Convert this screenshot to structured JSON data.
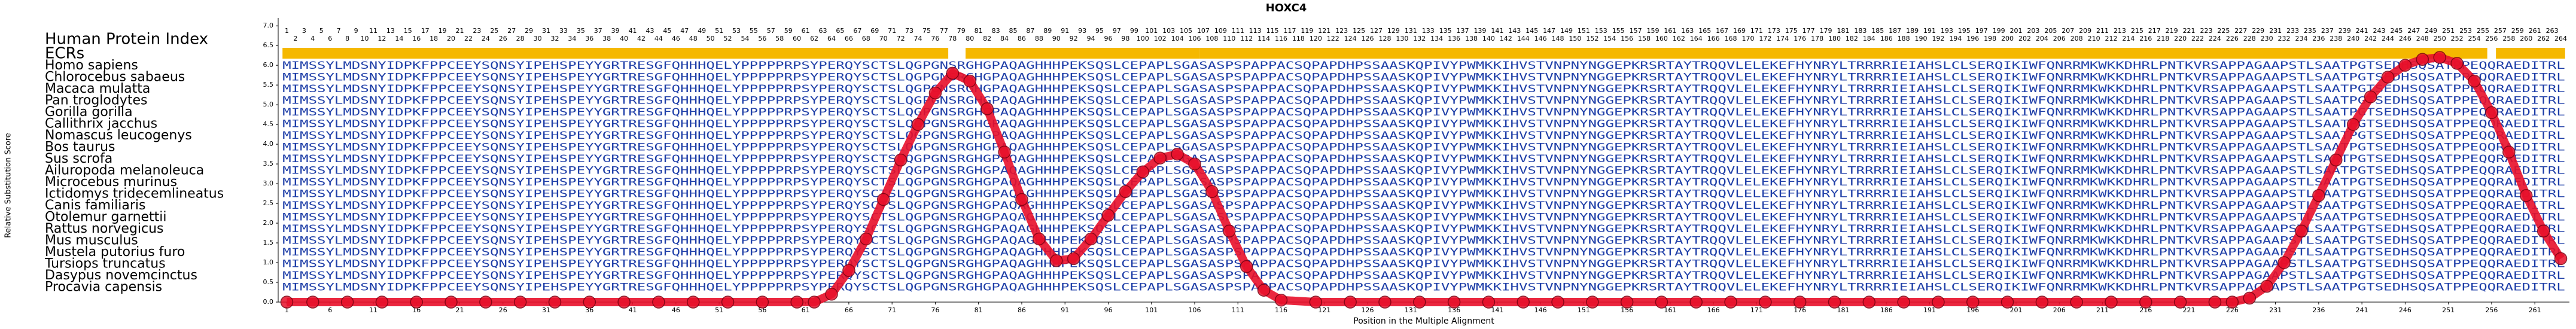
{
  "chart_data": {
    "type": "line",
    "title": "HOXC4",
    "index_label": "Human Protein Index",
    "ecr_label": "ECRs",
    "xlabel": "Position in the Multiple Alignment",
    "ylabel": "Relative Substitution Score",
    "xlim": [
      0,
      265
    ],
    "ylim": [
      0,
      7.2
    ],
    "yticks": [
      {
        "value": 0,
        "label": "0.0"
      },
      {
        "value": 0.5,
        "label": "0.5"
      },
      {
        "value": 1,
        "label": "1.0"
      },
      {
        "value": 1.5,
        "label": "1.5"
      },
      {
        "value": 2,
        "label": "2.0"
      },
      {
        "value": 2.5,
        "label": "2.5"
      },
      {
        "value": 3,
        "label": "3.0"
      },
      {
        "value": 3.5,
        "label": "3.5"
      },
      {
        "value": 4,
        "label": "4.0"
      },
      {
        "value": 4.5,
        "label": "4.5"
      },
      {
        "value": 5,
        "label": "5.0"
      },
      {
        "value": 5.5,
        "label": "5.5"
      },
      {
        "value": 6,
        "label": "6.0"
      },
      {
        "value": 6.5,
        "label": "6.5"
      },
      {
        "value": 7,
        "label": "7.0"
      }
    ],
    "xticks": [
      1,
      6,
      11,
      16,
      21,
      26,
      31,
      36,
      41,
      46,
      51,
      56,
      61,
      66,
      71,
      76,
      81,
      86,
      91,
      96,
      101,
      106,
      111,
      116,
      121,
      126,
      131,
      136,
      141,
      146,
      151,
      156,
      161,
      166,
      171,
      176,
      181,
      186,
      191,
      196,
      201,
      206,
      211,
      216,
      221,
      226,
      231,
      236,
      241,
      246,
      251,
      256,
      261
    ],
    "positions": [
      1,
      2,
      3,
      4,
      5,
      6,
      7,
      8,
      9,
      10,
      11,
      12,
      13,
      14,
      15,
      16,
      17,
      18,
      19,
      20,
      21,
      22,
      23,
      24,
      25,
      26,
      27,
      28,
      29,
      30,
      31,
      32,
      33,
      34,
      35,
      36,
      37,
      38,
      39,
      40,
      41,
      42,
      43,
      44,
      45,
      46,
      47,
      48,
      49,
      50,
      51,
      52,
      53,
      54,
      55,
      56,
      57,
      58,
      59,
      60,
      61,
      62,
      63,
      64,
      65,
      66,
      67,
      68,
      69,
      70,
      71,
      72,
      73,
      74,
      75,
      76,
      77,
      78,
      79,
      80,
      81,
      82,
      83,
      84,
      85,
      86,
      87,
      88,
      89,
      90,
      91,
      92,
      93,
      94,
      95,
      96,
      97,
      98,
      99,
      100,
      101,
      102,
      103,
      104,
      105,
      106,
      107,
      108,
      109,
      110,
      111,
      112,
      113,
      114,
      115,
      116,
      117,
      118,
      119,
      120,
      121,
      122,
      123,
      124,
      125,
      126,
      127,
      128,
      129,
      130,
      131,
      132,
      133,
      134,
      135,
      136,
      137,
      138,
      139,
      140,
      141,
      142,
      143,
      144,
      145,
      146,
      147,
      148,
      149,
      150,
      151,
      152,
      153,
      154,
      155,
      156,
      157,
      158,
      159,
      160,
      161,
      162,
      163,
      164,
      165,
      166,
      167,
      168,
      169,
      170,
      171,
      172,
      173,
      174,
      175,
      176,
      177,
      178,
      179,
      180,
      181,
      182,
      183,
      184,
      185,
      186,
      187,
      188,
      189,
      190,
      191,
      192,
      193,
      194,
      195,
      196,
      197,
      198,
      199,
      200,
      201,
      202,
      203,
      204,
      205,
      206,
      207,
      208,
      209,
      210,
      211,
      212,
      213,
      214,
      215,
      216,
      217,
      218,
      219,
      220,
      221,
      222,
      223,
      224,
      225,
      226,
      227,
      228,
      229,
      230,
      231,
      232,
      233,
      234,
      235,
      236,
      237,
      238,
      239,
      240,
      241,
      242,
      243,
      244,
      245,
      246,
      247,
      248,
      249,
      250,
      251,
      252,
      253,
      254,
      255,
      256,
      257,
      258,
      259,
      260,
      261,
      262,
      263,
      264
    ],
    "ecrs": [
      [
        1,
        77
      ],
      [
        80,
        106
      ],
      [
        107,
        255
      ],
      [
        257,
        264
      ]
    ],
    "ecr_color": "#f5b800",
    "species": [
      "Homo sapiens",
      "Chlorocebus sabaeus",
      "Macaca mulatta",
      "Pan troglodytes",
      "Gorilla gorilla",
      "Callithrix jacchus",
      "Nomascus leucogenys",
      "Bos taurus",
      "Sus scrofa",
      "Ailuropoda melanoleuca",
      "Microcebus murinus",
      "Ictidomys tridecemlineatus",
      "Canis familiaris",
      "Otolemur garnettii",
      "Rattus norvegicus",
      "Mus musculus",
      "Mustela putorius furo",
      "Tursiops truncatus",
      "Dasypus novemcinctus",
      "Procavia capensis"
    ],
    "sequences": [
      "MIMSSYLMDSNYIDPKFPPCEEYSQNSYIPEHSPEYYGRTRESGFQHHHQELYPPPPPRPSYPERQYSCTSLQGPGNSRGHGPAQAGHHHPEKSQSLCEPAPLSGASASPSPAPPACSQPAPDHPSSAASKQPIVYPWMKKIHVSTVNPNYNGGEPKRSRTAYTRQQVLELEKEFHYNRYLTRRRRIEIAHSLCLSERQIKIWFQNRRMKWKKDHRLPNTKVRSAPPAGAAPSTLSAATPGTSEDHSQSATPPEQQRAEDITRL",
      "MIMSSYLMDSNYIDPKFPPCEEYSQNSYIPEHSPEYYGRTRESGFQHHHQELYPPPPPRPSYPERQYSCTSLQGPGNSRGHGPAQAGHHHPEKSQSLCEPAPLSGASASPSPAPPACSQPAPDHPSSAASKQPIVYPWMKKIHVSTVNPNYNGGEPKRSRTAYTRQQVLELEKEFHYNRYLTRRRRIEIAHSLCLSERQIKIWFQNRRMKWKKDHRLPNTKVRSAPPAGAAPSTLSAATPGTSEDHSQSATPPEQQRAEDITRL",
      "MIMSSYLMDSNYIDPKFPPCEEYSQNSYIPEHSPEYYGRTRESGFQHHHQELYPPPPPRPSYPERQYSCTSLQGPGNSRGHGPAQAGHHHPEKSQSLCEPAPLSGASASPSPAPPACSQPAPDHPSSAASKQPIVYPWMKKIHVSTVNPNYNGGEPKRSRTAYTRQQVLELEKEFHYNRYLTRRRRIEIAHSLCLSERQIKIWFQNRRMKWKKDHRLPNTKVRSAPPAGAAPSTLSAATPGTSEDHSQSATPPEQQRAEDITRL",
      "MIMSSYLMDSNYIDPKFPPCEEYSQNSYIPEHSPEYYGRTRESGFQHHHQELYPPPPPRPSYPERQYSCTSLQGPGNSRGHGPAQAGHHHPEKSQSLCEPAPLSGASASPSPAPPACSQPAPDHPSSAASKQPIVYPWMKKIHVSTVNPNYNGGEPKRSRTAYTRQQVLELEKEFHYNRYLTRRRRIEIAHSLCLSERQIKIWFQNRRMKWKKDHRLPNTKVRSAPPAGAAPSTLSAATPGTSEDHSQSATPPEQQRAEDITRL",
      "MIMSSYLMDSNYIDPKFPPCEEYSQNSYIPEHSPEYYGRTRESGFQHHHQELYPPPPPRPSYPERQYSCTSLQGPGNSRGHGPAQAGHHHPEKSQSLCEPAPLSGASASPSPAPPACSQPAPDHPSSAASKQPIVYPWMKKIHVSTVNPNYNGGEPKRSRTAYTRQQVLELEKEFHYNRYLTRRRRIEIAHSLCLSERQIKIWFQNRRMKWKKDHRLPNTKVRSAPPAGAAPSTLSAATPGTSEDHSQSATPPEQQRAEDITRL",
      "MIMSSYLMDSNYIDPKFPPCEEYSQNSYIPEHSPEYYGRTRESGFQHHHQELYPPPPPRPSYPERQYSCTSLQGPGNSRGHGPAQAGHHHPEKSQSLCEPAPLSGASASPSPAPPACSQPAPDHPSSAASKQPIVYPWMKKIHVSTVNPNYNGGEPKRSRTAYTRQQVLELEKEFHYNRYLTRRRRIEIAHSLCLSERQIKIWFQNRRMKWKKDHRLPNTKVRSAPPAGAAPSTLSAATPGTSEDHSQSATPPEQQRAEDITRL",
      "MIMSSYLMDSNYIDPKFPPCEEYSQNSYIPEHSPEYYGRTRESGFQHHHQELYPPPPPRPSYPERQYSCTSLQGPGNSRGHGPAQAGHHHPEKSQSLCEPAPLSGASASPSPAPPACSQPAPDHPSSAASKQPIVYPWMKKIHVSTVNPNYNGGEPKRSRTAYTRQQVLELEKEFHYNRYLTRRRRIEIAHSLCLSERQIKIWFQNRRMKWKKDHRLPNTKVRSAPPAGAAPSTLSAATPGTSEDHSQSATPPEQQRAEDITRL",
      "MIMSSYLMDSNYIDPKFPPCEEYSQNSYIPEHSPEYYGRTRESGFQHHHQELYPPPPPRPSYPERQYSCTSLQGPGNSRGHGPAQAGHHHPEKSQSLCEPAPLSGASASPSPAPPACSQPAPDHPSSAASKQPIVYPWMKKIHVSTVNPNYNGGEPKRSRTAYTRQQVLELEKEFHYNRYLTRRRRIEIAHSLCLSERQIKIWFQNRRMKWKKDHRLPNTKVRSAPPAGAAPSTLSAATPGTSEDHSQSATPPEQQRAEDITRL",
      "MIMSSYLMDSNYIDPKFPPCEEYSQNSYIPEHSPEYYGRTRESGFQHHHQELYPPPPPRPSYPERQYSCTSLQGPGNSRGHGPAQAGHHHPEKSQSLCEPAPLSGASASPSPAPPACSQPAPDHPSSAASKQPIVYPWMKKIHVSTVNPNYNGGEPKRSRTAYTRQQVLELEKEFHYNRYLTRRRRIEIAHSLCLSERQIKIWFQNRRMKWKKDHRLPNTKVRSAPPAGAAPSTLSAATPGTSEDHSQSATPPEQQRAEDITRL",
      "MIMSSYLMDSNYIDPKFPPCEEYSQNSYIPEHSPEYYGRTRESGFQHHHQELYPPPPPRPSYPERQYSCTSLQGPGNSRGHGPAQAGHHHPEKSQSLCEPAPLSGASASPSPAPPACSQPAPDHPSSAASKQPIVYPWMKKIHVSTVNPNYNGGEPKRSRTAYTRQQVLELEKEFHYNRYLTRRRRIEIAHSLCLSERQIKIWFQNRRMKWKKDHRLPNTKVRSAPPAGAAPSTLSAATPGTSEDHSQSATPPEQQRAEDITRL",
      "MIMSSYLMDSNYIDPKFPPCEEYSQNSYIPEHSPEYYGRTRESGFQHHHQELYPPPPPRPSYPERQYSCTSLQGPGNSRGHGPAQAGHHHPEKSQSLCEPAPLSGASASPSPAPPACSQPAPDHPSSAASKQPIVYPWMKKIHVSTVNPNYNGGEPKRSRTAYTRQQVLELEKEFHYNRYLTRRRRIEIAHSLCLSERQIKIWFQNRRMKWKKDHRLPNTKVRSAPPAGAAPSTLSAATPGTSEDHSQSATPPEQQRAEDITRL",
      "MIMSSYLMDSNYIDPKFPPCEEYSQNSYIPEHSPEYYGRTRESGFQHHHQELYPPPPPRPSYPERQYSCTSLQGPGNSRGHGPAQAGHHHPEKSQSLCEPAPLSGASASPSPAPPACSQPAPDHPSSAASKQPIVYPWMKKIHVSTVNPNYNGGEPKRSRTAYTRQQVLELEKEFHYNRYLTRRRRIEIAHSLCLSERQIKIWFQNRRMKWKKDHRLPNTKVRSAPPAGAAPSTLSAATPGTSEDHSQSATPPEQQRAEDITRL",
      "MIMSSYLMDSNYIDPKFPPCEEYSQNSYIPEHSPEYYGRTRESGFQHHHQELYPPPPPRPSYPERQYSCTSLQGPGNSRGHGPAQAGHHHPEKSQSLCEPAPLSGASASPSPAPPACSQPAPDHPSSAASKQPIVYPWMKKIHVSTVNPNYNGGEPKRSRTAYTRQQVLELEKEFHYNRYLTRRRRIEIAHSLCLSERQIKIWFQNRRMKWKKDHRLPNTKVRSAPPAGAAPSTLSAATPGTSEDHSQSATPPEQQRAEDITRL",
      "MIMSSYLMDSNYIDPKFPPCEEYSQNSYIPEHSPEYYGRTRESGFQHHHQELYPPPPPRPSYPERQYSCTSLQGPGNSRGHGPAQAGHHHPEKSQSLCEPAPLSGASASPSPAPPACSQPAPDHPSSAASKQPIVYPWMKKIHVSTVNPNYNGGEPKRSRTAYTRQQVLELEKEFHYNRYLTRRRRIEIAHSLCLSERQIKIWFQNRRMKWKKDHRLPNTKVRSAPPAGAAPSTLSAATPGTSEDHSQSATPPEQQRAEDITRL",
      "MIMSSYLMDSNYIDPKFPPCEEYSQNSYIPEHSPEYYGRTRESGFQHHHQELYPPPPPRPSYPERQYSCTSLQGPGNSRGHGPAQAGHHHPEKSQSLCEPAPLSGASASPSPAPPACSQPAPDHPSSAASKQPIVYPWMKKIHVSTVNPNYNGGEPKRSRTAYTRQQVLELEKEFHYNRYLTRRRRIEIAHSLCLSERQIKIWFQNRRMKWKKDHRLPNTKVRSAPPAGAAPSTLSAATPGTSEDHSQSATPPEQQRAEDITRL",
      "MIMSSYLMDSNYIDPKFPPCEEYSQNSYIPEHSPEYYGRTRESGFQHHHQELYPPPPPRPSYPERQYSCTSLQGPGNSRGHGPAQAGHHHPEKSQSLCEPAPLSGASASPSPAPPACSQPAPDHPSSAASKQPIVYPWMKKIHVSTVNPNYNGGEPKRSRTAYTRQQVLELEKEFHYNRYLTRRRRIEIAHSLCLSERQIKIWFQNRRMKWKKDHRLPNTKVRSAPPAGAAPSTLSAATPGTSEDHSQSATPPEQQRAEDITRL",
      "MIMSSYLMDSNYIDPKFPPCEEYSQNSYIPEHSPEYYGRTRESGFQHHHQELYPPPPPRPSYPERQYSCTSLQGPGNSRGHGPAQAGHHHPEKSQSLCEPAPLSGASASPSPAPPACSQPAPDHPSSAASKQPIVYPWMKKIHVSTVNPNYNGGEPKRSRTAYTRQQVLELEKEFHYNRYLTRRRRIEIAHSLCLSERQIKIWFQNRRMKWKKDHRLPNTKVRSAPPAGAAPSTLSAATPGTSEDHSQSATPPEQQRAEDITRL",
      "MIMSSYLMDSNYIDPKFPPCEEYSQNSYIPEHSPEYYGRTRESGFQHHHQELYPPPPPRPSYPERQYSCTSLQGPGNSRGHGPAQAGHHHPEKSQSLCEPAPLSGASASPSPAPPACSQPAPDHPSSAASKQPIVYPWMKKIHVSTVNPNYNGGEPKRSRTAYTRQQVLELEKEFHYNRYLTRRRRIEIAHSLCLSERQIKIWFQNRRMKWKKDHRLPNTKVRSAPPAGAAPSTLSAATPGTSEDHSQSATPPEQQRAEDITRL",
      "MIMSSYLMDSNYIDPKFPPCEEYSQNSYIPEHSPEYYGRTRESGFQHHHQELYPPPPPRPSYPERQYSCTSLQGPGNSRGHGPAQAGHHHPEKSQSLCEPAPLSGASASPSPAPPACSQPAPDHPSSAASKQPIVYPWMKKIHVSTVNPNYNGGEPKRSRTAYTRQQVLELEKEFHYNRYLTRRRRIEIAHSLCLSERQIKIWFQNRRMKWKKDHRLPNTKVRSAPPAGAAPSTLSAATPGTSEDHSQSATPPEQQRAEDITRL",
      "MIMSSYLMDSNYIDPKFPPCEEYSQNSYIPEHSPEYYGRTRESGFQHHHQELYPPPPPRPSYPERQYSCTSLQGPGNSRGHGPAQAGHHHPEKSQSLCEPAPLSGASASPSPAPPACSQPAPDHPSSAASKQPIVYPWMKKIHVSTVNPNYNGGEPKRSRTAYTRQQVLELEKEFHYNRYLTRRRRIEIAHSLCLSERQIKIWFQNRRMKWKKDHRLPNTKVRSAPPAGAAPSTLSAATPGTSEDHSQSATPPEQQRAEDITRL"
    ],
    "x": [
      1,
      4,
      8,
      12,
      16,
      20,
      24,
      28,
      32,
      36,
      40,
      44,
      48,
      52,
      56,
      60,
      62,
      64,
      66,
      68,
      70,
      72,
      74,
      76,
      78,
      80,
      82,
      84,
      86,
      88,
      90,
      92,
      94,
      96,
      98,
      100,
      102,
      104,
      106,
      108,
      110,
      112,
      114,
      116,
      120,
      124,
      128,
      132,
      136,
      140,
      144,
      148,
      152,
      156,
      160,
      164,
      168,
      172,
      176,
      180,
      184,
      188,
      192,
      196,
      200,
      204,
      208,
      212,
      216,
      220,
      224,
      226,
      228,
      230,
      232,
      234,
      236,
      238,
      240,
      242,
      244,
      246,
      248,
      250,
      252,
      254,
      256,
      258,
      260,
      262,
      264
    ],
    "series": [
      {
        "color": "#e8102a",
        "values": [
          0,
          0,
          0,
          0,
          0,
          0,
          0,
          0,
          0,
          0,
          0,
          0,
          0,
          0,
          0,
          0,
          0,
          0.2,
          0.8,
          1.6,
          2.6,
          3.6,
          4.5,
          5.3,
          5.8,
          5.6,
          4.9,
          3.8,
          2.6,
          1.6,
          1.05,
          1.1,
          1.6,
          2.2,
          2.8,
          3.3,
          3.65,
          3.75,
          3.5,
          2.8,
          1.8,
          0.9,
          0.3,
          0.05,
          0,
          0,
          0,
          0,
          0,
          0,
          0,
          0,
          0,
          0,
          0,
          0,
          0,
          0,
          0,
          0,
          0,
          0,
          0,
          0,
          0,
          0,
          0,
          0,
          0,
          0,
          0,
          0,
          0.1,
          0.4,
          1.0,
          1.8,
          2.7,
          3.6,
          4.5,
          5.2,
          5.7,
          6.0,
          6.15,
          6.2,
          6.05,
          5.6,
          4.8,
          3.8,
          2.7,
          1.8,
          1.1
        ]
      }
    ]
  }
}
